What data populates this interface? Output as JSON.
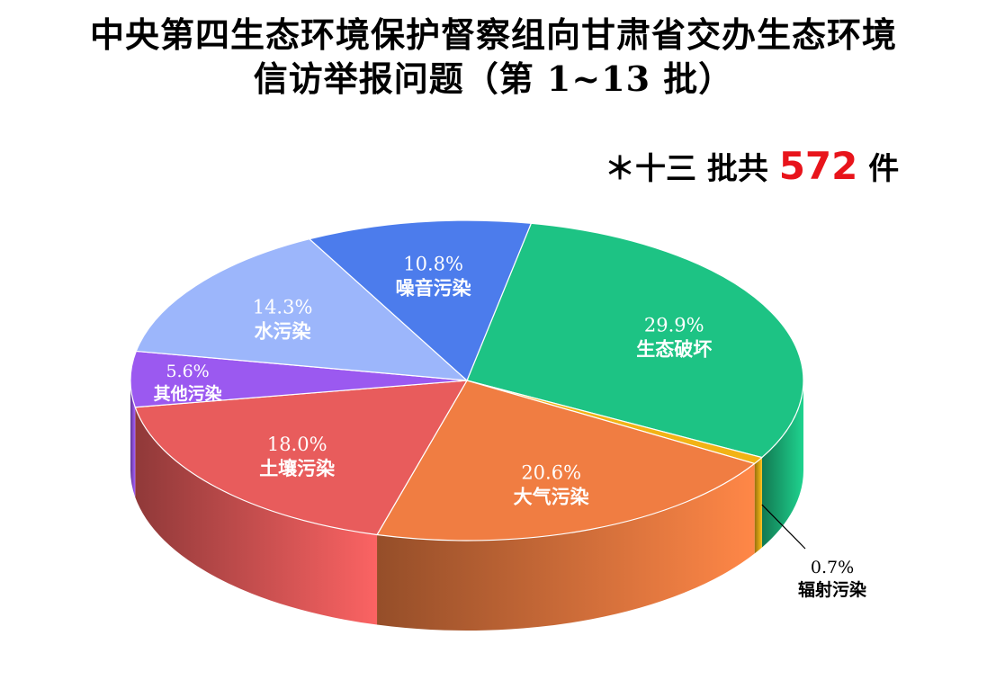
{
  "title": {
    "line1": "中央第四生态环境保护督察组向甘肃省交办生态环境",
    "line2": "信访举报问题（第 1~13 批）"
  },
  "summary": {
    "prefix": "＊十三 批共",
    "total": "572",
    "suffix": "件"
  },
  "colors": {
    "生态破坏": "#1dc384",
    "辐射污染": "#f2b315",
    "大气污染": "#f07d42",
    "土壤污染": "#e85c5c",
    "其他污染": "#9b59f0",
    "水污染": "#9cb6fb",
    "噪音污染": "#4c7cec",
    "total_highlight": "#e8141b"
  },
  "chart_data": {
    "type": "pie",
    "style": "3d",
    "title": "中央第四生态环境保护督察组向甘肃省交办生态环境信访举报问题（第 1~13 批）",
    "total_label": "＊十三 批共 572 件",
    "slices": [
      {
        "label": "生态破坏",
        "value": 29.9,
        "value_label": "29.9%"
      },
      {
        "label": "辐射污染",
        "value": 0.7,
        "value_label": "0.7%"
      },
      {
        "label": "大气污染",
        "value": 20.6,
        "value_label": "20.6%"
      },
      {
        "label": "土壤污染",
        "value": 18.0,
        "value_label": "18.0%"
      },
      {
        "label": "其他污染",
        "value": 5.6,
        "value_label": "5.6%"
      },
      {
        "label": "水污染",
        "value": 14.3,
        "value_label": "14.3%"
      },
      {
        "label": "噪音污染",
        "value": 10.8,
        "value_label": "10.8%"
      }
    ]
  }
}
